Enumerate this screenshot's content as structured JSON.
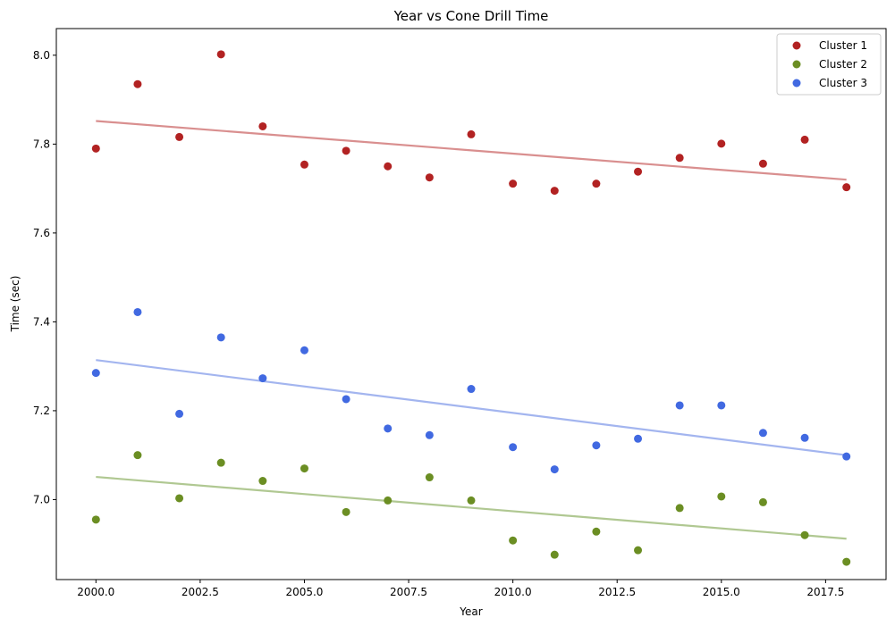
{
  "chart_data": {
    "type": "scatter",
    "title": "Year vs Cone Drill Time",
    "xlabel": "Year",
    "ylabel": "Time (sec)",
    "xlim": [
      1999.05,
      2018.95
    ],
    "ylim": [
      6.82,
      8.06
    ],
    "xticks": [
      2000.0,
      2002.5,
      2005.0,
      2007.5,
      2010.0,
      2012.5,
      2015.0,
      2017.5
    ],
    "xtick_labels": [
      "2000.0",
      "2002.5",
      "2005.0",
      "2007.5",
      "2010.0",
      "2012.5",
      "2015.0",
      "2017.5"
    ],
    "yticks": [
      7.0,
      7.2,
      7.4,
      7.6,
      7.8,
      8.0
    ],
    "ytick_labels": [
      "7.0",
      "7.2",
      "7.4",
      "7.6",
      "7.8",
      "8.0"
    ],
    "grid": false,
    "legend_position": "top-right",
    "x": [
      2000,
      2001,
      2002,
      2003,
      2004,
      2005,
      2006,
      2007,
      2008,
      2009,
      2010,
      2011,
      2012,
      2013,
      2014,
      2015,
      2016,
      2017,
      2018
    ],
    "series": [
      {
        "name": "Cluster 1",
        "color": "#b22222",
        "line_color": "#d98f8f",
        "values": [
          7.79,
          7.935,
          7.816,
          8.002,
          7.84,
          7.754,
          7.785,
          7.75,
          7.725,
          7.822,
          7.711,
          7.695,
          7.711,
          7.738,
          7.769,
          7.801,
          7.756,
          7.81,
          7.703
        ],
        "trend": [
          7.852,
          7.72
        ]
      },
      {
        "name": "Cluster 2",
        "color": "#6b8e23",
        "line_color": "#b0c892",
        "values": [
          6.955,
          7.1,
          7.003,
          7.083,
          7.042,
          7.07,
          6.972,
          6.998,
          7.05,
          6.998,
          6.908,
          6.876,
          6.928,
          6.886,
          6.981,
          7.007,
          6.994,
          6.92,
          6.86
        ],
        "trend": [
          7.051,
          6.912
        ]
      },
      {
        "name": "Cluster 3",
        "color": "#4169e1",
        "line_color": "#a3b5ef",
        "values": [
          7.285,
          7.422,
          7.193,
          7.365,
          7.273,
          7.336,
          7.226,
          7.16,
          7.145,
          7.249,
          7.118,
          7.068,
          7.122,
          7.137,
          7.212,
          7.212,
          7.15,
          7.139,
          7.097
        ],
        "trend": [
          7.314,
          7.1
        ]
      }
    ]
  }
}
